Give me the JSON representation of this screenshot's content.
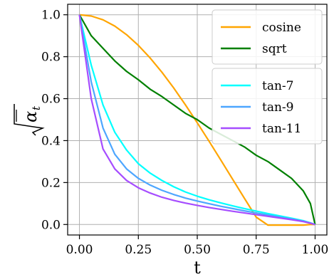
{
  "chart_data": {
    "type": "line",
    "xlabel": "t",
    "ylabel": "√ᾱt",
    "ylabel_base": "α",
    "ylabel_sub": "t",
    "xlim": [
      -0.05,
      1.05
    ],
    "ylim": [
      -0.05,
      1.05
    ],
    "x_ticks": [
      0.0,
      0.25,
      0.5,
      0.75,
      1.0
    ],
    "x_tick_labels": [
      "0.00",
      "0.25",
      "0.50",
      "0.75",
      "1.00"
    ],
    "y_ticks": [
      0.0,
      0.2,
      0.4,
      0.6,
      0.8,
      1.0
    ],
    "y_tick_labels": [
      "0.0",
      "0.2",
      "0.4",
      "0.6",
      "0.8",
      "1.0"
    ],
    "grid": true,
    "legends": [
      {
        "placement": "upper-right",
        "entries": [
          "cosine",
          "sqrt"
        ]
      },
      {
        "placement": "center-right",
        "entries": [
          "tan-7",
          "tan-9",
          "tan-11"
        ]
      }
    ],
    "x": [
      0.0,
      0.05,
      0.1,
      0.15,
      0.2,
      0.25,
      0.3,
      0.35,
      0.4,
      0.45,
      0.5,
      0.55,
      0.6,
      0.65,
      0.7,
      0.75,
      0.8,
      0.85,
      0.9,
      0.95,
      0.98,
      1.0
    ],
    "series": [
      {
        "name": "cosine",
        "color": "#ffa500",
        "values": [
          1.0,
          0.994,
          0.976,
          0.946,
          0.905,
          0.854,
          0.794,
          0.726,
          0.651,
          0.57,
          0.485,
          0.397,
          0.307,
          0.216,
          0.125,
          0.035,
          -0.003,
          -0.003,
          -0.003,
          -0.003,
          0.0,
          0.0
        ]
      },
      {
        "name": "sqrt",
        "color": "#008000",
        "values": [
          1.0,
          0.9,
          0.84,
          0.78,
          0.73,
          0.69,
          0.645,
          0.61,
          0.57,
          0.53,
          0.5,
          0.46,
          0.43,
          0.4,
          0.37,
          0.33,
          0.3,
          0.26,
          0.22,
          0.16,
          0.1,
          0.0
        ]
      },
      {
        "name": "tan-7",
        "color": "#00ffff",
        "values": [
          1.0,
          0.76,
          0.57,
          0.44,
          0.355,
          0.29,
          0.245,
          0.21,
          0.18,
          0.155,
          0.135,
          0.118,
          0.103,
          0.089,
          0.076,
          0.064,
          0.052,
          0.041,
          0.03,
          0.018,
          0.008,
          0.0
        ]
      },
      {
        "name": "tan-9",
        "color": "#4da6ff",
        "values": [
          1.0,
          0.68,
          0.46,
          0.335,
          0.265,
          0.22,
          0.188,
          0.163,
          0.143,
          0.126,
          0.112,
          0.099,
          0.087,
          0.076,
          0.065,
          0.055,
          0.045,
          0.035,
          0.026,
          0.016,
          0.007,
          0.0
        ]
      },
      {
        "name": "tan-11",
        "color": "#a64dff",
        "values": [
          1.0,
          0.6,
          0.36,
          0.265,
          0.21,
          0.175,
          0.15,
          0.13,
          0.115,
          0.102,
          0.091,
          0.081,
          0.072,
          0.063,
          0.055,
          0.047,
          0.039,
          0.031,
          0.023,
          0.014,
          0.006,
          0.0
        ]
      }
    ]
  }
}
